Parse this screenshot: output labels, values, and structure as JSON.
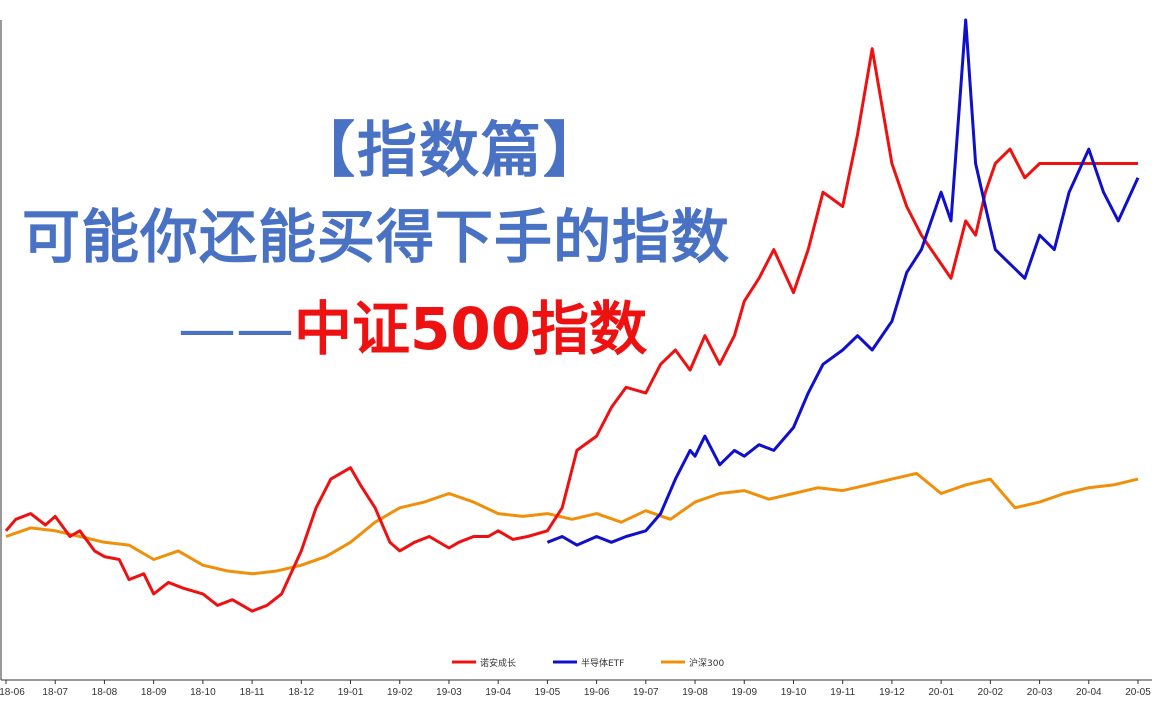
{
  "title": {
    "line1": "【指数篇】",
    "line2": "可能你还能买得下手的指数",
    "line3_dash": "——",
    "line3_highlight": "中证500指数"
  },
  "colors": {
    "title_blue": "#4a72c4",
    "title_red": "#ee1111",
    "series_nuoan": "#ee1111",
    "series_semi": "#1010cc",
    "series_hs300": "#f0900a"
  },
  "chart_data": {
    "type": "line",
    "legend_position": "bottom-center",
    "grid": false,
    "y_axis_labels_visible": false,
    "x_tick_labels": [
      "18-06",
      "18-07",
      "18-08",
      "18-09",
      "18-10",
      "18-11",
      "18-12",
      "19-01",
      "19-02",
      "19-03",
      "19-04",
      "19-05",
      "19-06",
      "19-07",
      "19-08",
      "19-09",
      "19-10",
      "19-11",
      "19-12",
      "20-01",
      "20-02",
      "20-03",
      "20-04",
      "20-05"
    ],
    "ylim": [
      0.5,
      2.8
    ],
    "series": [
      {
        "name": "诺安成长",
        "color": "#ee1111",
        "x": [
          0,
          0.2,
          0.5,
          0.8,
          1.0,
          1.3,
          1.5,
          1.8,
          2.0,
          2.3,
          2.5,
          2.8,
          3.0,
          3.3,
          3.6,
          4.0,
          4.3,
          4.6,
          5.0,
          5.3,
          5.6,
          6.0,
          6.3,
          6.6,
          7.0,
          7.2,
          7.5,
          7.8,
          8.0,
          8.3,
          8.6,
          9.0,
          9.2,
          9.5,
          9.8,
          10.0,
          10.3,
          10.6,
          11.0,
          11.3,
          11.6,
          12.0,
          12.3,
          12.6,
          13.0,
          13.3,
          13.6,
          13.9,
          14.0,
          14.2,
          14.5,
          14.8,
          15.0,
          15.3,
          15.6,
          16.0,
          16.3,
          16.6,
          17.0,
          17.3,
          17.6,
          18.0,
          18.3,
          18.6,
          19.0,
          19.2,
          19.5,
          19.7,
          19.9,
          20.1,
          20.4,
          20.7,
          21.0,
          21.3,
          21.6,
          22.0,
          22.3,
          22.6,
          23.0
        ],
        "y": [
          1.02,
          1.06,
          1.08,
          1.04,
          1.07,
          1.0,
          1.02,
          0.95,
          0.93,
          0.92,
          0.85,
          0.87,
          0.8,
          0.84,
          0.82,
          0.8,
          0.76,
          0.78,
          0.74,
          0.76,
          0.8,
          0.95,
          1.1,
          1.2,
          1.24,
          1.18,
          1.1,
          0.98,
          0.95,
          0.98,
          1.0,
          0.96,
          0.98,
          1.0,
          1.0,
          1.02,
          0.99,
          1.0,
          1.02,
          1.1,
          1.3,
          1.35,
          1.45,
          1.52,
          1.5,
          1.6,
          1.65,
          1.58,
          1.62,
          1.7,
          1.6,
          1.7,
          1.82,
          1.9,
          2.0,
          1.85,
          2.0,
          2.2,
          2.15,
          2.4,
          2.7,
          2.3,
          2.15,
          2.05,
          1.95,
          1.9,
          2.1,
          2.05,
          2.2,
          2.3,
          2.35,
          2.25,
          2.3,
          2.3,
          2.3,
          2.3,
          2.3,
          2.3,
          2.3
        ]
      },
      {
        "name": "半导体ETF",
        "color": "#1010cc",
        "x": [
          11.0,
          11.3,
          11.6,
          12.0,
          12.3,
          12.6,
          13.0,
          13.3,
          13.6,
          13.9,
          14.0,
          14.2,
          14.5,
          14.8,
          15.0,
          15.3,
          15.6,
          16.0,
          16.3,
          16.6,
          17.0,
          17.3,
          17.6,
          18.0,
          18.3,
          18.6,
          19.0,
          19.2,
          19.5,
          19.7,
          19.9,
          20.1,
          20.4,
          20.7,
          21.0,
          21.3,
          21.6,
          22.0,
          22.3,
          22.6,
          23.0
        ],
        "y": [
          0.98,
          1.0,
          0.97,
          1.0,
          0.98,
          1.0,
          1.02,
          1.08,
          1.2,
          1.3,
          1.28,
          1.35,
          1.25,
          1.3,
          1.28,
          1.32,
          1.3,
          1.38,
          1.5,
          1.6,
          1.65,
          1.7,
          1.65,
          1.75,
          1.92,
          2.0,
          2.2,
          2.1,
          2.8,
          2.3,
          2.15,
          2.0,
          1.95,
          1.9,
          2.05,
          2.0,
          2.2,
          2.35,
          2.2,
          2.1,
          2.25
        ]
      },
      {
        "name": "沪深300",
        "color": "#f0900a",
        "x": [
          0,
          0.5,
          1.0,
          1.5,
          2.0,
          2.5,
          3.0,
          3.5,
          4.0,
          4.5,
          5.0,
          5.5,
          6.0,
          6.5,
          7.0,
          7.5,
          8.0,
          8.5,
          9.0,
          9.5,
          10.0,
          10.5,
          11.0,
          11.5,
          12.0,
          12.5,
          13.0,
          13.5,
          14.0,
          14.5,
          15.0,
          15.5,
          16.0,
          16.5,
          17.0,
          17.5,
          18.0,
          18.5,
          19.0,
          19.5,
          20.0,
          20.5,
          21.0,
          21.5,
          22.0,
          22.5,
          23.0
        ],
        "y": [
          1.0,
          1.03,
          1.02,
          1.0,
          0.98,
          0.97,
          0.92,
          0.95,
          0.9,
          0.88,
          0.87,
          0.88,
          0.9,
          0.93,
          0.98,
          1.05,
          1.1,
          1.12,
          1.15,
          1.12,
          1.08,
          1.07,
          1.08,
          1.06,
          1.08,
          1.05,
          1.09,
          1.06,
          1.12,
          1.15,
          1.16,
          1.13,
          1.15,
          1.17,
          1.16,
          1.18,
          1.2,
          1.22,
          1.15,
          1.18,
          1.2,
          1.1,
          1.12,
          1.15,
          1.17,
          1.18,
          1.2
        ]
      }
    ]
  }
}
